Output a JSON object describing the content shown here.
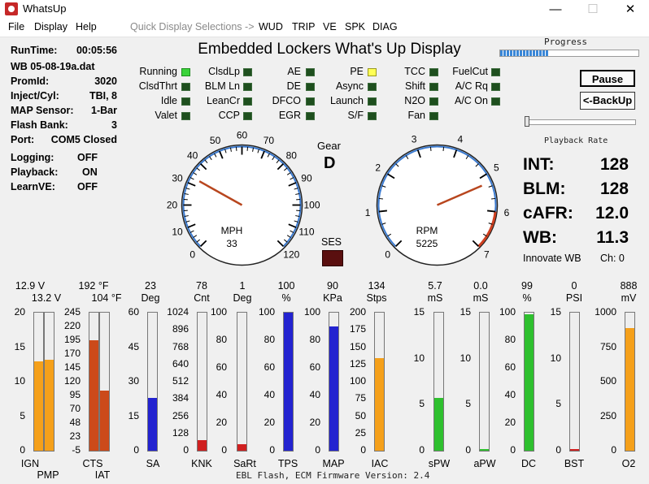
{
  "window": {
    "title": "WhatsUp",
    "minimize": "—",
    "maximize": "☐",
    "close": "✕"
  },
  "menu": {
    "file": "File",
    "display": "Display",
    "help": "Help",
    "quick": "Quick Display Selections ->",
    "wud": "WUD",
    "trip": "TRIP",
    "ve": "VE",
    "spk": "SPK",
    "diag": "DIAG"
  },
  "header": {
    "title": "Embedded Lockers What's Up Display"
  },
  "info": {
    "runtime_label": "RunTime:",
    "runtime": "00:05:56",
    "file": "WB 05-08-19a.dat",
    "promid_label": "PromId:",
    "promid": "3020",
    "inject_label": "Inject/Cyl:",
    "inject": "TBI, 8",
    "map_label": "MAP Sensor:",
    "map": "1-Bar",
    "flash_label": "Flash Bank:",
    "flash": "3",
    "port_label": "Port:",
    "port": "COM5 Closed",
    "logging_label": "Logging:",
    "logging": "OFF",
    "playback_label": "Playback:",
    "playback": "ON",
    "learnve_label": "LearnVE:",
    "learnve": "OFF"
  },
  "indicators": [
    {
      "label": "Running",
      "state": "on-green"
    },
    {
      "label": "ClsdThrt",
      "state": "off"
    },
    {
      "label": "Idle",
      "state": "off"
    },
    {
      "label": "Valet",
      "state": "off"
    },
    {
      "label": "ClsdLp",
      "state": "off"
    },
    {
      "label": "BLM Ln",
      "state": "off"
    },
    {
      "label": "LeanCr",
      "state": "off"
    },
    {
      "label": "CCP",
      "state": "off"
    },
    {
      "label": "AE",
      "state": "off"
    },
    {
      "label": "DE",
      "state": "off"
    },
    {
      "label": "DFCO",
      "state": "off"
    },
    {
      "label": "EGR",
      "state": "off"
    },
    {
      "label": "PE",
      "state": "on-yellow"
    },
    {
      "label": "Async",
      "state": "off"
    },
    {
      "label": "Launch",
      "state": "off"
    },
    {
      "label": "S/F",
      "state": "off"
    },
    {
      "label": "TCC",
      "state": "off"
    },
    {
      "label": "Shift",
      "state": "off"
    },
    {
      "label": "N2O",
      "state": "off"
    },
    {
      "label": "Fan",
      "state": "off"
    },
    {
      "label": "FuelCut",
      "state": "off"
    },
    {
      "label": "A/C Rq",
      "state": "off"
    },
    {
      "label": "A/C On",
      "state": "off"
    }
  ],
  "mph": {
    "label": "MPH",
    "value": "33",
    "ticks": [
      "0",
      "10",
      "20",
      "30",
      "40",
      "50",
      "60",
      "70",
      "80",
      "90",
      "100",
      "110",
      "120"
    ],
    "needle": 33,
    "max": 120
  },
  "rpm": {
    "label": "RPM",
    "value": "5225",
    "ticks": [
      "0",
      "1",
      "2",
      "3",
      "4",
      "5",
      "6",
      "7"
    ],
    "needle": 5.225,
    "max": 7
  },
  "gear": {
    "label": "Gear",
    "value": "D"
  },
  "ses": {
    "label": "SES"
  },
  "controls": {
    "progress_label": "Progress",
    "progress": 0.35,
    "pause": "Pause",
    "backup": "<-BackUp",
    "rate_label": "Playback Rate",
    "rate": 0.0
  },
  "readouts": {
    "int_label": "INT:",
    "int": "128",
    "blm_label": "BLM:",
    "blm": "128",
    "cafr_label": "cAFR:",
    "cafr": "12.0",
    "wb_label": "WB:",
    "wb": "11.3",
    "innovate": "Innovate WB",
    "ch": "Ch: 0"
  },
  "bars": {
    "ign": {
      "value": "12.9 V",
      "label": "IGN",
      "level": 0.645,
      "color": "#f5a01a"
    },
    "pmp": {
      "value": "13.2 V",
      "label": "PMP",
      "level": 0.66,
      "color": "#f5a01a"
    },
    "cts": {
      "value": "192 °F",
      "label": "CTS",
      "level": 0.8,
      "color": "#cc4a1a"
    },
    "iat": {
      "value": "104 °F",
      "label": "IAT",
      "level": 0.435,
      "color": "#cc4a1a"
    },
    "sa": {
      "value": "23",
      "unit": "Deg",
      "label": "SA",
      "level": 0.383,
      "color": "#2323d0"
    },
    "knk": {
      "value": "78",
      "unit": "Cnt",
      "label": "KNK",
      "level": 0.076,
      "color": "#d02020"
    },
    "sart": {
      "value": "1",
      "unit": "Deg",
      "label": "SaRt",
      "level": 0.05,
      "color": "#d02020"
    },
    "tps": {
      "value": "100",
      "unit": "%",
      "label": "TPS",
      "level": 1.0,
      "color": "#2323d0"
    },
    "map": {
      "value": "90",
      "unit": "KPa",
      "label": "MAP",
      "level": 0.9,
      "color": "#2323d0"
    },
    "iac": {
      "value": "134",
      "unit": "Stps",
      "label": "IAC",
      "level": 0.67,
      "color": "#f5a01a"
    },
    "spw": {
      "value": "5.7",
      "unit": "mS",
      "label": "sPW",
      "level": 0.38,
      "color": "#2ec02e"
    },
    "apw": {
      "value": "0.0",
      "unit": "mS",
      "label": "aPW",
      "level": 0.01,
      "color": "#2ec02e"
    },
    "dc": {
      "value": "99",
      "unit": "%",
      "label": "DC",
      "level": 0.99,
      "color": "#2ec02e"
    },
    "bst": {
      "value": "0",
      "unit": "PSI",
      "label": "BST",
      "level": 0.01,
      "color": "#d02020"
    },
    "o2": {
      "value": "888",
      "unit": "mV",
      "label": "O2",
      "level": 0.888,
      "color": "#f5a01a"
    }
  },
  "scales": {
    "volts": [
      "20",
      "15",
      "10",
      "5",
      "0"
    ],
    "temp": [
      "245",
      "220",
      "195",
      "170",
      "145",
      "120",
      "95",
      "70",
      "48",
      "23",
      "-5"
    ],
    "sa": [
      "60",
      "45",
      "30",
      "15",
      "0"
    ],
    "knk": [
      "1024",
      "896",
      "768",
      "640",
      "512",
      "384",
      "256",
      "128",
      "0"
    ],
    "tps": [
      "100",
      "80",
      "60",
      "40",
      "20",
      "0"
    ],
    "map": [
      "100",
      "80",
      "60",
      "40",
      "20",
      "0"
    ],
    "iac": [
      "200",
      "175",
      "150",
      "125",
      "100",
      "75",
      "50",
      "25",
      "0"
    ],
    "pw": [
      "15",
      "10",
      "5",
      "0"
    ],
    "dc": [
      "100",
      "80",
      "60",
      "40",
      "20",
      "0"
    ],
    "bst": [
      "15",
      "10",
      "5",
      "0"
    ],
    "o2": [
      "1000",
      "750",
      "500",
      "250",
      "0"
    ]
  },
  "footer": {
    "text": "EBL Flash, ECM Firmware Version: 2.4"
  }
}
